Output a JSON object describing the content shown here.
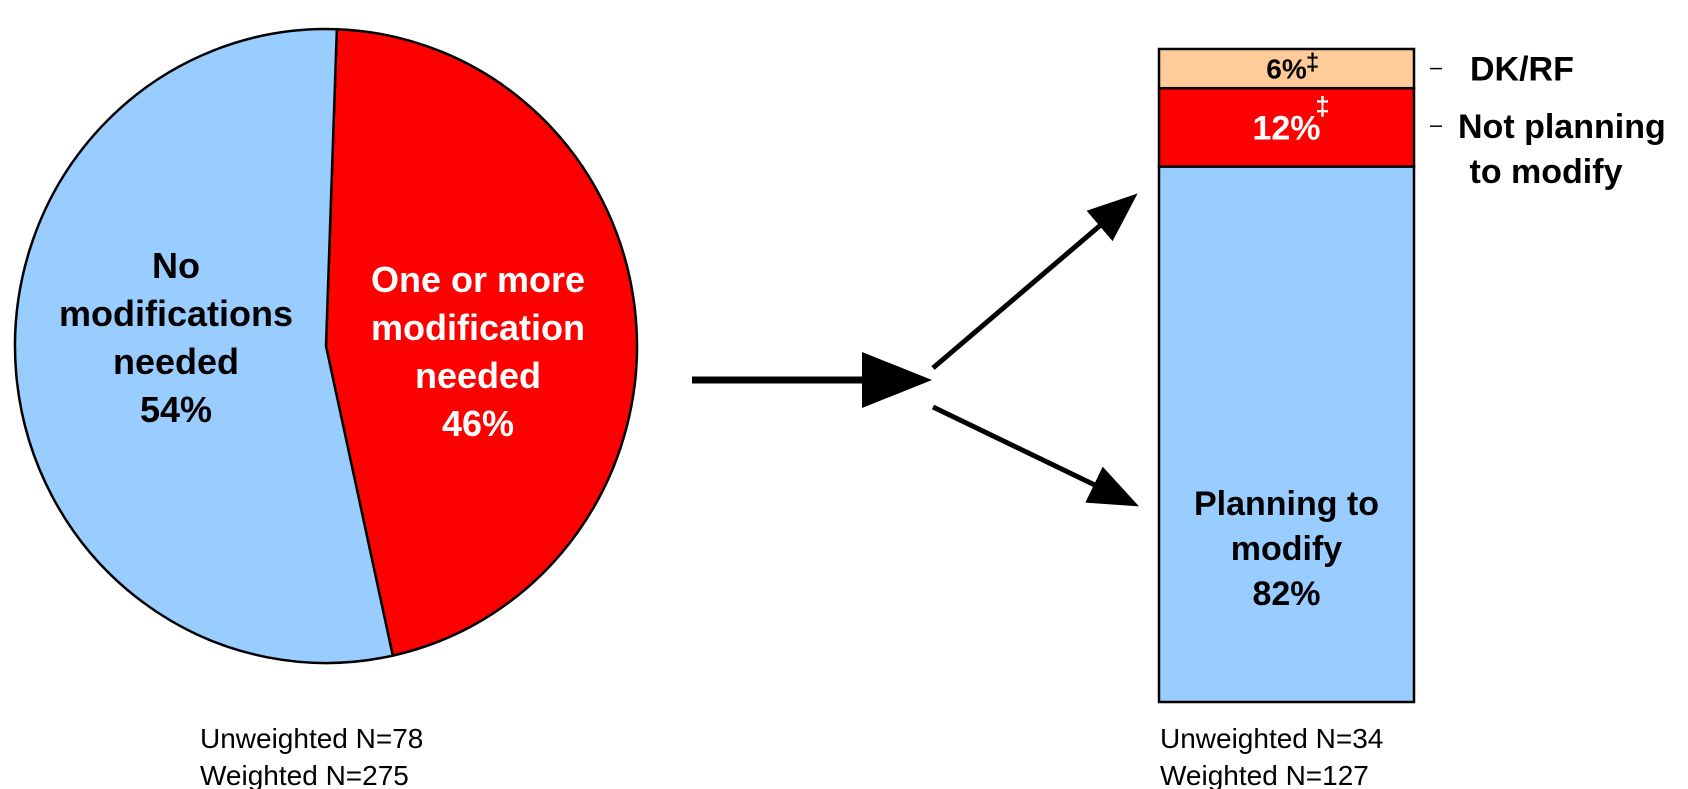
{
  "chart_data": [
    {
      "type": "pie",
      "slices": [
        {
          "label_lines": [
            "No",
            "modifications",
            "needed"
          ],
          "value": 54,
          "value_label": "54%",
          "color": "#99ccff",
          "text_color": "#000000"
        },
        {
          "label_lines": [
            "One or more",
            "modification",
            "needed"
          ],
          "value": 46,
          "value_label": "46%",
          "color": "#ff0000",
          "text_color": "#ffffff"
        }
      ],
      "notes": [
        "Unweighted N=78",
        "Weighted N=275"
      ]
    },
    {
      "type": "bar",
      "stacked": true,
      "segments": [
        {
          "name": "Planning to modify",
          "inside_lines": [
            "Planning to",
            "modify"
          ],
          "value": 82,
          "value_label": "82%",
          "color": "#99ccff",
          "text_color": "#000000"
        },
        {
          "name": "Not planning to modify",
          "legend_lines": [
            "Not planning",
            "to modify"
          ],
          "value": 12,
          "value_label": "12%",
          "marker": "‡",
          "color": "#ff0000",
          "text_color": "#ffffff"
        },
        {
          "name": "DK/RF",
          "legend_lines": [
            "DK/RF"
          ],
          "value": 6,
          "value_label": "6%",
          "marker": "‡",
          "color": "#ffcc99",
          "text_color": "#000000"
        }
      ],
      "notes": [
        "Unweighted N=34",
        "Weighted N=127"
      ]
    }
  ]
}
